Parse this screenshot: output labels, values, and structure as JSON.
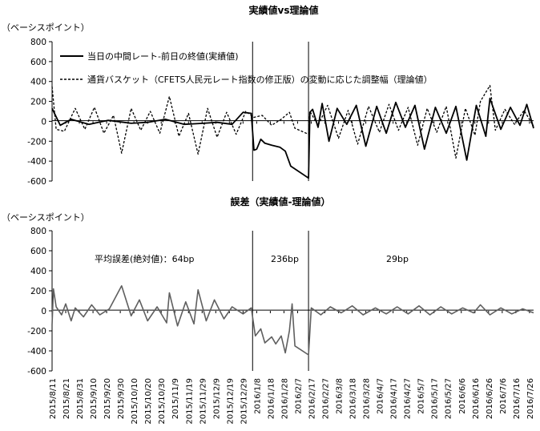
{
  "chart_data": [
    {
      "type": "line",
      "title": "実績値vs理論値",
      "ylabel": "（ベーシスポイント）",
      "ylim": [
        -600,
        800
      ],
      "yticks": [
        -600,
        -400,
        -200,
        0,
        200,
        400,
        600,
        800
      ],
      "x_range": [
        "2015-08-11",
        "2016-07-29"
      ],
      "grid": false,
      "legend_position": "top-left",
      "vlines": [
        "2016-01-05",
        "2016-02-15"
      ],
      "series": [
        {
          "name": "当日の中間レート-前日の終値(実績値)",
          "style": "solid",
          "color": "#000000",
          "points": [
            [
              "2015-08-11",
              130
            ],
            [
              "2015-08-17",
              -40
            ],
            [
              "2015-08-25",
              20
            ],
            [
              "2015-09-07",
              -30
            ],
            [
              "2015-09-21",
              10
            ],
            [
              "2015-10-08",
              -20
            ],
            [
              "2015-10-20",
              -10
            ],
            [
              "2015-11-02",
              20
            ],
            [
              "2015-11-16",
              -30
            ],
            [
              "2015-11-30",
              -20
            ],
            [
              "2015-12-10",
              -10
            ],
            [
              "2015-12-21",
              -30
            ],
            [
              "2015-12-29",
              90
            ],
            [
              "2016-01-04",
              80
            ],
            [
              "2016-01-06",
              -290
            ],
            [
              "2016-01-08",
              -280
            ],
            [
              "2016-01-11",
              -180
            ],
            [
              "2016-01-14",
              -220
            ],
            [
              "2016-01-19",
              -240
            ],
            [
              "2016-01-25",
              -260
            ],
            [
              "2016-01-29",
              -300
            ],
            [
              "2016-02-02",
              -450
            ],
            [
              "2016-02-15",
              -570
            ],
            [
              "2016-02-16",
              90
            ],
            [
              "2016-02-18",
              120
            ],
            [
              "2016-02-22",
              -60
            ],
            [
              "2016-02-25",
              180
            ],
            [
              "2016-03-01",
              -200
            ],
            [
              "2016-03-07",
              130
            ],
            [
              "2016-03-14",
              -30
            ],
            [
              "2016-03-21",
              160
            ],
            [
              "2016-03-28",
              -250
            ],
            [
              "2016-04-05",
              150
            ],
            [
              "2016-04-12",
              -120
            ],
            [
              "2016-04-19",
              190
            ],
            [
              "2016-04-26",
              -60
            ],
            [
              "2016-05-03",
              160
            ],
            [
              "2016-05-10",
              -280
            ],
            [
              "2016-05-18",
              140
            ],
            [
              "2016-05-26",
              -120
            ],
            [
              "2016-06-02",
              150
            ],
            [
              "2016-06-10",
              -390
            ],
            [
              "2016-06-17",
              160
            ],
            [
              "2016-06-24",
              -150
            ],
            [
              "2016-06-27",
              230
            ],
            [
              "2016-07-05",
              -80
            ],
            [
              "2016-07-12",
              140
            ],
            [
              "2016-07-19",
              -40
            ],
            [
              "2016-07-24",
              170
            ],
            [
              "2016-07-29",
              -70
            ]
          ]
        },
        {
          "name": "通貨バスケット（CFETS人民元レート指数の修正版）の変動に応じた調整幅（理論値）",
          "style": "dashed",
          "color": "#000000",
          "points": [
            [
              "2015-08-11",
              350
            ],
            [
              "2015-08-14",
              -80
            ],
            [
              "2015-08-20",
              -100
            ],
            [
              "2015-08-28",
              130
            ],
            [
              "2015-09-04",
              -80
            ],
            [
              "2015-09-11",
              140
            ],
            [
              "2015-09-18",
              -120
            ],
            [
              "2015-09-25",
              60
            ],
            [
              "2015-10-01",
              -320
            ],
            [
              "2015-10-08",
              130
            ],
            [
              "2015-10-15",
              -90
            ],
            [
              "2015-10-22",
              100
            ],
            [
              "2015-10-29",
              -120
            ],
            [
              "2015-11-05",
              250
            ],
            [
              "2015-11-12",
              -150
            ],
            [
              "2015-11-19",
              80
            ],
            [
              "2015-11-26",
              -330
            ],
            [
              "2015-12-03",
              130
            ],
            [
              "2015-12-10",
              -160
            ],
            [
              "2015-12-17",
              90
            ],
            [
              "2015-12-24",
              -130
            ],
            [
              "2015-12-31",
              100
            ],
            [
              "2016-01-06",
              40
            ],
            [
              "2016-01-12",
              60
            ],
            [
              "2016-01-19",
              -40
            ],
            [
              "2016-01-26",
              20
            ],
            [
              "2016-02-01",
              90
            ],
            [
              "2016-02-05",
              -70
            ],
            [
              "2016-02-15",
              -130
            ],
            [
              "2016-02-16",
              100
            ],
            [
              "2016-02-22",
              -40
            ],
            [
              "2016-02-29",
              160
            ],
            [
              "2016-03-08",
              -170
            ],
            [
              "2016-03-15",
              110
            ],
            [
              "2016-03-22",
              -230
            ],
            [
              "2016-03-30",
              150
            ],
            [
              "2016-04-07",
              -110
            ],
            [
              "2016-04-14",
              170
            ],
            [
              "2016-04-21",
              -90
            ],
            [
              "2016-04-28",
              140
            ],
            [
              "2016-05-05",
              -240
            ],
            [
              "2016-05-12",
              130
            ],
            [
              "2016-05-19",
              -110
            ],
            [
              "2016-05-26",
              150
            ],
            [
              "2016-06-02",
              -370
            ],
            [
              "2016-06-09",
              130
            ],
            [
              "2016-06-16",
              -140
            ],
            [
              "2016-06-20",
              200
            ],
            [
              "2016-06-27",
              360
            ],
            [
              "2016-07-01",
              -90
            ],
            [
              "2016-07-08",
              120
            ],
            [
              "2016-07-15",
              -30
            ],
            [
              "2016-07-22",
              110
            ],
            [
              "2016-07-29",
              -50
            ]
          ]
        }
      ]
    },
    {
      "type": "line",
      "title": "誤差（実績値-理論値）",
      "ylabel": "（ベーシスポイント）",
      "ylim": [
        -600,
        800
      ],
      "yticks": [
        -600,
        -400,
        -200,
        0,
        200,
        400,
        600,
        800
      ],
      "x_range": [
        "2015-08-11",
        "2016-07-29"
      ],
      "grid": false,
      "vlines": [
        "2016-01-05",
        "2016-02-15"
      ],
      "annotations": [
        {
          "text": "平均誤差(絶対値)：64bp",
          "anchor_x": "2015-10-05",
          "y": 500
        },
        {
          "text": "236bp",
          "anchor_x": "2016-01-26",
          "y": 500
        },
        {
          "text": "29bp",
          "anchor_x": "2016-04-15",
          "y": 500
        }
      ],
      "series": [
        {
          "name": "",
          "style": "solid",
          "color": "#5f5f5f",
          "points": [
            [
              "2015-08-11",
              -140
            ],
            [
              "2015-08-12",
              220
            ],
            [
              "2015-08-14",
              40
            ],
            [
              "2015-08-18",
              -40
            ],
            [
              "2015-08-21",
              70
            ],
            [
              "2015-08-25",
              -100
            ],
            [
              "2015-08-28",
              30
            ],
            [
              "2015-09-03",
              -60
            ],
            [
              "2015-09-09",
              60
            ],
            [
              "2015-09-15",
              -40
            ],
            [
              "2015-09-22",
              20
            ],
            [
              "2015-10-01",
              250
            ],
            [
              "2015-10-08",
              -50
            ],
            [
              "2015-10-14",
              110
            ],
            [
              "2015-10-20",
              -100
            ],
            [
              "2015-10-27",
              40
            ],
            [
              "2015-11-03",
              -120
            ],
            [
              "2015-11-05",
              180
            ],
            [
              "2015-11-11",
              -150
            ],
            [
              "2015-11-17",
              90
            ],
            [
              "2015-11-23",
              -130
            ],
            [
              "2015-11-26",
              210
            ],
            [
              "2015-12-02",
              -100
            ],
            [
              "2015-12-08",
              110
            ],
            [
              "2015-12-15",
              -80
            ],
            [
              "2015-12-21",
              40
            ],
            [
              "2015-12-29",
              -30
            ],
            [
              "2016-01-04",
              30
            ],
            [
              "2016-01-07",
              -250
            ],
            [
              "2016-01-11",
              -180
            ],
            [
              "2016-01-14",
              -320
            ],
            [
              "2016-01-19",
              -260
            ],
            [
              "2016-01-22",
              -330
            ],
            [
              "2016-01-26",
              -250
            ],
            [
              "2016-01-29",
              -420
            ],
            [
              "2016-02-01",
              -200
            ],
            [
              "2016-02-03",
              70
            ],
            [
              "2016-02-05",
              -350
            ],
            [
              "2016-02-15",
              -440
            ],
            [
              "2016-02-17",
              30
            ],
            [
              "2016-02-24",
              -40
            ],
            [
              "2016-03-02",
              40
            ],
            [
              "2016-03-10",
              -20
            ],
            [
              "2016-03-18",
              50
            ],
            [
              "2016-03-26",
              -40
            ],
            [
              "2016-04-04",
              30
            ],
            [
              "2016-04-12",
              -30
            ],
            [
              "2016-04-20",
              40
            ],
            [
              "2016-04-28",
              -30
            ],
            [
              "2016-05-06",
              50
            ],
            [
              "2016-05-14",
              -40
            ],
            [
              "2016-05-22",
              40
            ],
            [
              "2016-05-30",
              -30
            ],
            [
              "2016-06-07",
              30
            ],
            [
              "2016-06-15",
              -20
            ],
            [
              "2016-06-20",
              60
            ],
            [
              "2016-06-27",
              -40
            ],
            [
              "2016-07-05",
              30
            ],
            [
              "2016-07-13",
              -30
            ],
            [
              "2016-07-21",
              20
            ],
            [
              "2016-07-29",
              -20
            ]
          ]
        }
      ]
    }
  ],
  "x_axis": {
    "tick_labels": [
      "2015/8/11",
      "2015/8/21",
      "2015/8/31",
      "2015/9/10",
      "2015/9/20",
      "2015/9/30",
      "2015/10/10",
      "2015/10/20",
      "2015/10/30",
      "2015/11/9",
      "2015/11/19",
      "2015/11/29",
      "2015/12/9",
      "2015/12/19",
      "2015/12/29",
      "2016/1/8",
      "2016/1/18",
      "2016/1/28",
      "2016/2/7",
      "2016/2/17",
      "2016/2/27",
      "2016/3/8",
      "2016/3/18",
      "2016/3/28",
      "2016/4/7",
      "2016/4/17",
      "2016/4/27",
      "2016/5/7",
      "2016/5/17",
      "2016/5/27",
      "2016/6/6",
      "2016/6/16",
      "2016/6/26",
      "2016/7/6",
      "2016/7/16",
      "2016/7/26"
    ]
  }
}
